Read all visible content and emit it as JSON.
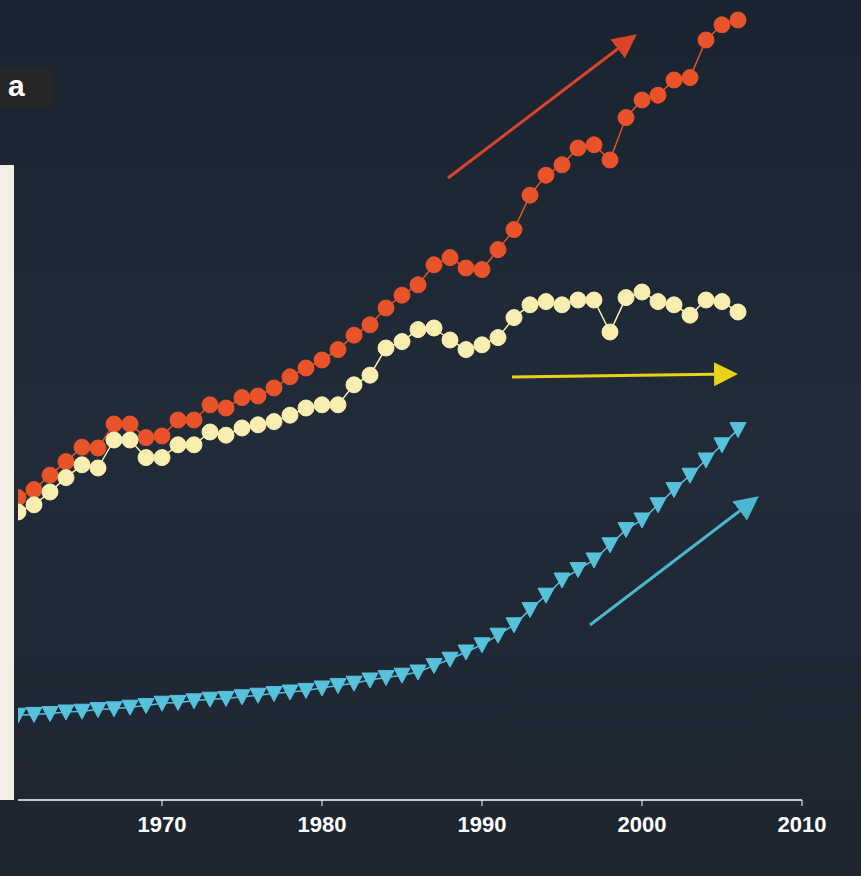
{
  "panel": "a",
  "chart_data": {
    "type": "line",
    "x": [
      1961,
      1962,
      1963,
      1964,
      1965,
      1966,
      1967,
      1968,
      1969,
      1970,
      1971,
      1972,
      1973,
      1974,
      1975,
      1976,
      1977,
      1978,
      1979,
      1980,
      1981,
      1982,
      1983,
      1984,
      1985,
      1986,
      1987,
      1988,
      1989,
      1990,
      1991,
      1992,
      1993,
      1994,
      1995,
      1996,
      1997,
      1998,
      1999,
      2000,
      2001,
      2002,
      2003,
      2004,
      2005,
      2006
    ],
    "series": [
      {
        "color": "#e8532a",
        "marker": "circle",
        "values": [
          37.8,
          38.8,
          40.6,
          42.3,
          44.1,
          44,
          47,
          47,
          45.3,
          45.5,
          47.5,
          47.5,
          49.4,
          49,
          50.3,
          50.5,
          51.5,
          52.9,
          54,
          55,
          56.3,
          58.1,
          59.4,
          61.5,
          63.1,
          64.4,
          66.9,
          67.8,
          66.5,
          66.3,
          68.8,
          71.3,
          75.6,
          78.1,
          79.4,
          81.5,
          81.9,
          80,
          85.3,
          87.5,
          88.1,
          90,
          90.3,
          95,
          96.9,
          97.5
        ]
      },
      {
        "color": "#f7eeb0",
        "marker": "circle",
        "values": [
          36,
          36.9,
          38.5,
          40.3,
          41.9,
          41.5,
          45,
          45,
          42.8,
          42.8,
          44.4,
          44.4,
          46,
          45.6,
          46.5,
          46.9,
          47.3,
          48.1,
          49,
          49.4,
          49.4,
          51.9,
          53.1,
          56.5,
          57.3,
          58.8,
          59,
          57.5,
          56.3,
          56.9,
          57.8,
          60.3,
          61.9,
          62.3,
          61.9,
          62.5,
          62.5,
          58.5,
          62.8,
          63.5,
          62.3,
          61.9,
          60.6,
          62.5,
          62.3,
          61
        ]
      },
      {
        "color": "#56c2dc",
        "marker": "triangle",
        "values": [
          10.6,
          10.7,
          10.8,
          11,
          11.1,
          11.3,
          11.4,
          11.6,
          11.8,
          12.1,
          12.2,
          12.4,
          12.6,
          12.7,
          12.9,
          13.1,
          13.3,
          13.5,
          13.7,
          14,
          14.3,
          14.6,
          15,
          15.3,
          15.6,
          16,
          16.8,
          17.6,
          18.5,
          19.4,
          20.6,
          21.9,
          23.8,
          25.6,
          27.5,
          28.8,
          30,
          31.9,
          33.8,
          35,
          36.9,
          38.8,
          40.6,
          42.5,
          44.4,
          46.3
        ]
      }
    ],
    "xlim": [
      1961,
      2010
    ],
    "xticks": [
      1970,
      1980,
      1990,
      2000,
      2010
    ],
    "ylim": [
      0,
      100
    ],
    "yticks": [],
    "tick_labels": "x",
    "grid": false
  }
}
